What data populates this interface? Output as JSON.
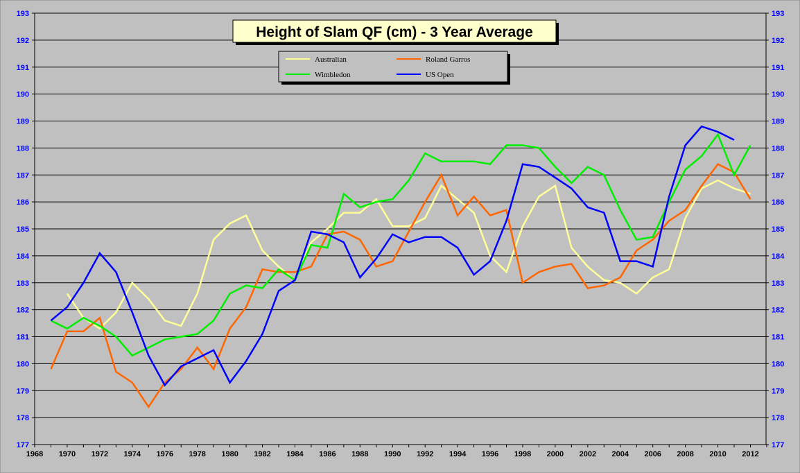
{
  "chart_data": {
    "type": "line",
    "title": "Height of Slam QF (cm) - 3 Year Average",
    "xlabel": "",
    "ylabel": "",
    "xlim": [
      1968,
      2013
    ],
    "ylim": [
      177,
      193
    ],
    "grid": true,
    "legend_position": "top-center",
    "x_ticks": [
      "1968",
      "1970",
      "1972",
      "1974",
      "1976",
      "1978",
      "1980",
      "1982",
      "1984",
      "1986",
      "1988",
      "1990",
      "1992",
      "1994",
      "1996",
      "1998",
      "2000",
      "2002",
      "2004",
      "2006",
      "2008",
      "2010",
      "2012"
    ],
    "y_ticks": [
      "177",
      "178",
      "179",
      "180",
      "181",
      "182",
      "183",
      "184",
      "185",
      "186",
      "187",
      "188",
      "189",
      "190",
      "191",
      "192",
      "193"
    ],
    "series": [
      {
        "name": "Australian",
        "color": "#ffff99",
        "start": 1970,
        "values": [
          182.6,
          181.7,
          181.3,
          181.9,
          183.0,
          182.4,
          181.6,
          181.4,
          182.6,
          184.6,
          185.2,
          185.5,
          184.2,
          183.6,
          183.1,
          184.5,
          185.0,
          185.6,
          185.6,
          186.1,
          185.1,
          185.1,
          185.4,
          186.6,
          186.1,
          185.6,
          184.0,
          183.4,
          185.1,
          186.2,
          186.6,
          184.3,
          183.6,
          183.1,
          183.0,
          182.6,
          183.2,
          183.5,
          185.4,
          186.5,
          186.8,
          186.5,
          186.3
        ]
      },
      {
        "name": "Roland Garros",
        "color": "#ff6600",
        "start": 1969,
        "values": [
          179.8,
          181.2,
          181.2,
          181.7,
          179.7,
          179.3,
          178.4,
          179.3,
          179.8,
          180.6,
          179.8,
          181.3,
          182.1,
          183.5,
          183.4,
          183.4,
          183.6,
          184.8,
          184.9,
          184.6,
          183.6,
          183.8,
          184.9,
          186.0,
          187.0,
          185.5,
          186.2,
          185.5,
          185.7,
          183.0,
          183.4,
          183.6,
          183.7,
          182.8,
          182.9,
          183.2,
          184.2,
          184.6,
          185.3,
          185.7,
          186.6,
          187.4,
          187.1,
          186.1
        ]
      },
      {
        "name": "Wimbledon",
        "color": "#00ee00",
        "start": 1969,
        "values": [
          181.6,
          181.3,
          181.7,
          181.4,
          181.0,
          180.3,
          180.6,
          180.9,
          181.0,
          181.1,
          181.6,
          182.6,
          182.9,
          182.8,
          183.5,
          183.1,
          184.4,
          184.3,
          186.3,
          185.8,
          186.0,
          186.1,
          186.8,
          187.8,
          187.5,
          187.5,
          187.5,
          187.4,
          188.1,
          188.1,
          188.0,
          187.3,
          186.7,
          187.3,
          187.0,
          185.7,
          184.6,
          184.7,
          186.0,
          187.2,
          187.7,
          188.5,
          187.0,
          188.1
        ]
      },
      {
        "name": "US Open",
        "color": "#0000ff",
        "start": 1969,
        "values": [
          181.6,
          182.1,
          183.0,
          184.1,
          183.4,
          181.9,
          180.3,
          179.2,
          179.9,
          180.2,
          180.5,
          179.3,
          180.1,
          181.1,
          182.7,
          183.1,
          184.9,
          184.8,
          184.5,
          183.2,
          183.9,
          184.8,
          184.5,
          184.7,
          184.7,
          184.3,
          183.3,
          183.8,
          185.3,
          187.4,
          187.3,
          186.9,
          186.5,
          185.8,
          185.6,
          183.8,
          183.8,
          183.6,
          186.2,
          188.1,
          188.8,
          188.6,
          188.3
        ]
      }
    ]
  }
}
